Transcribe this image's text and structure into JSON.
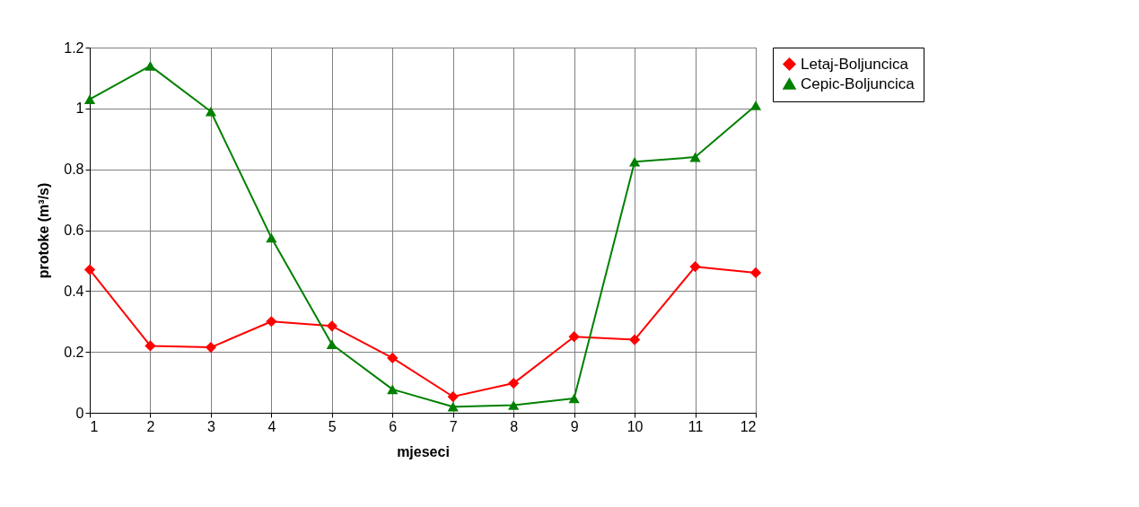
{
  "chart_data": {
    "type": "line",
    "xlabel": "mjeseci",
    "ylabel": "protoke (m³/s)",
    "x": [
      1,
      2,
      3,
      4,
      5,
      6,
      7,
      8,
      9,
      10,
      11,
      12
    ],
    "xlim": [
      1,
      12
    ],
    "xticks": [
      1,
      2,
      3,
      4,
      5,
      6,
      7,
      8,
      9,
      10,
      11,
      12
    ],
    "ylim": [
      0,
      1.2
    ],
    "yticks": [
      0,
      0.2,
      0.4,
      0.6,
      0.8,
      1,
      1.2
    ],
    "grid": true,
    "legend": "right",
    "line_style": "solid",
    "series": [
      {
        "name": "Letaj-Boljuncica",
        "color": "#ff0000",
        "marker": "diamond",
        "values": [
          0.47,
          0.22,
          0.215,
          0.3,
          0.285,
          0.18,
          0.053,
          0.097,
          0.25,
          0.24,
          0.48,
          0.46
        ]
      },
      {
        "name": "Cepic-Boljuncica",
        "color": "#008000",
        "marker": "triangle",
        "values": [
          1.03,
          1.14,
          0.99,
          0.575,
          0.225,
          0.077,
          0.02,
          0.025,
          0.047,
          0.825,
          0.84,
          1.01
        ]
      }
    ]
  }
}
